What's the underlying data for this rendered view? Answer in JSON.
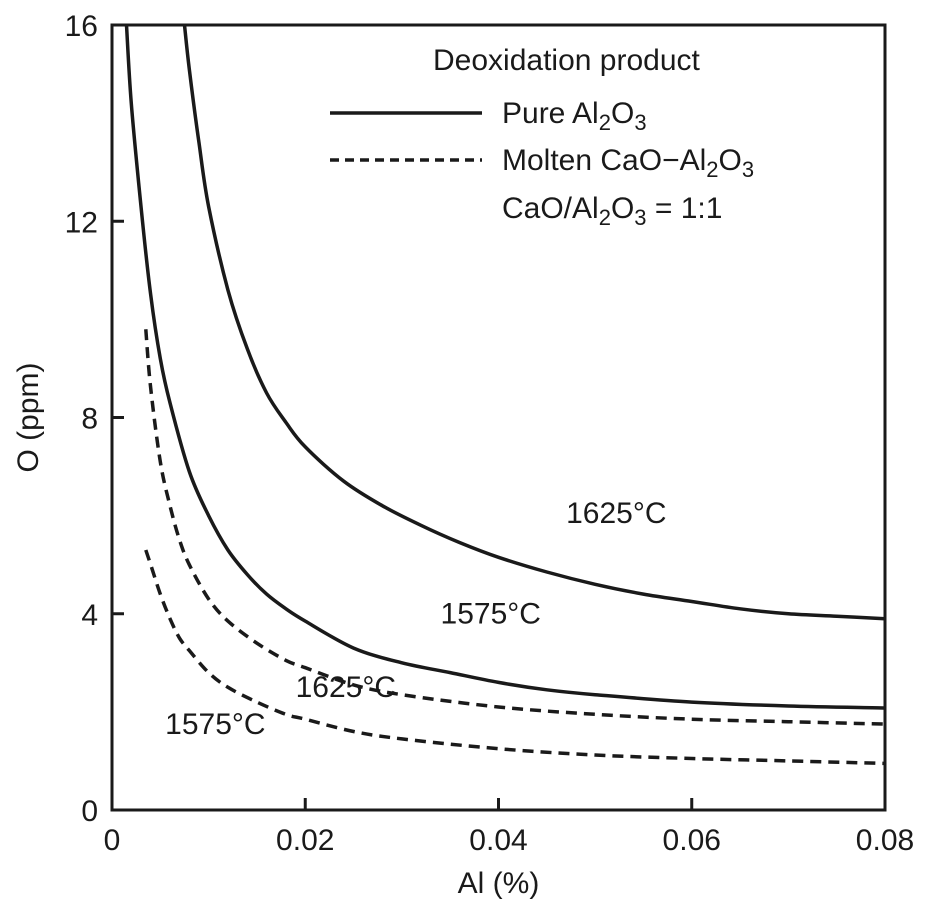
{
  "chart_data": {
    "type": "line",
    "title": "",
    "xlabel": "Al (%)",
    "ylabel": "O (ppm)",
    "xlim": [
      0,
      0.08
    ],
    "ylim": [
      0,
      16
    ],
    "x_ticks": [
      "0",
      "0.02",
      "0.04",
      "0.06",
      "0.08"
    ],
    "y_ticks": [
      "0",
      "4",
      "8",
      "12",
      "16"
    ],
    "grid": false,
    "legend": {
      "title": "Deoxidation product",
      "position": "top-right",
      "entries": [
        {
          "style": "solid",
          "label": "Pure Al",
          "sub1": "2",
          "mid": "O",
          "sub2": "3"
        },
        {
          "style": "dashed",
          "label": "Molten CaO−Al",
          "sub1": "2",
          "mid": "O",
          "sub2": "3"
        }
      ],
      "note": {
        "pre": "CaO/Al",
        "sub1": "2",
        "mid": "O",
        "sub2": "3",
        "post": " = 1:1"
      }
    },
    "series": [
      {
        "style": "solid",
        "label": "1625°C",
        "x": [
          0.0075,
          0.008,
          0.009,
          0.01,
          0.012,
          0.014,
          0.016,
          0.018,
          0.02,
          0.024,
          0.028,
          0.032,
          0.036,
          0.04,
          0.045,
          0.05,
          0.055,
          0.06,
          0.065,
          0.07,
          0.075,
          0.08
        ],
        "y": [
          16.0,
          15.1,
          13.6,
          12.3,
          10.6,
          9.4,
          8.5,
          7.9,
          7.4,
          6.7,
          6.2,
          5.8,
          5.45,
          5.15,
          4.85,
          4.6,
          4.4,
          4.25,
          4.1,
          4.0,
          3.95,
          3.9
        ]
      },
      {
        "style": "solid",
        "label": "1575°C",
        "x": [
          0.0015,
          0.002,
          0.003,
          0.004,
          0.005,
          0.006,
          0.008,
          0.01,
          0.012,
          0.014,
          0.016,
          0.018,
          0.02,
          0.025,
          0.03,
          0.035,
          0.04,
          0.045,
          0.05,
          0.06,
          0.07,
          0.08
        ],
        "y": [
          16.0,
          14.4,
          12.3,
          10.5,
          9.2,
          8.3,
          6.9,
          6.0,
          5.3,
          4.8,
          4.4,
          4.1,
          3.85,
          3.3,
          3.0,
          2.8,
          2.6,
          2.45,
          2.35,
          2.2,
          2.12,
          2.08
        ]
      },
      {
        "style": "dashed",
        "label": "1625°C",
        "x": [
          0.0035,
          0.004,
          0.005,
          0.006,
          0.007,
          0.008,
          0.01,
          0.012,
          0.015,
          0.018,
          0.02,
          0.025,
          0.03,
          0.04,
          0.05,
          0.06,
          0.07,
          0.08
        ],
        "y": [
          9.8,
          8.6,
          7.1,
          6.2,
          5.5,
          5.0,
          4.3,
          3.85,
          3.4,
          3.05,
          2.9,
          2.55,
          2.35,
          2.1,
          1.95,
          1.85,
          1.8,
          1.75
        ]
      },
      {
        "style": "dashed",
        "label": "1575°C",
        "x": [
          0.0035,
          0.004,
          0.005,
          0.006,
          0.007,
          0.008,
          0.01,
          0.012,
          0.015,
          0.018,
          0.02,
          0.025,
          0.03,
          0.04,
          0.05,
          0.06,
          0.07,
          0.08
        ],
        "y": [
          5.3,
          5.0,
          4.4,
          3.9,
          3.5,
          3.25,
          2.8,
          2.5,
          2.2,
          1.95,
          1.85,
          1.6,
          1.45,
          1.25,
          1.12,
          1.05,
          1.0,
          0.95
        ]
      }
    ],
    "annotations": [
      {
        "text": "1625°C",
        "series_index": 0,
        "x": 0.047,
        "y": 5.85
      },
      {
        "text": "1575°C",
        "series_index": 1,
        "x": 0.034,
        "y": 3.8
      },
      {
        "text": "1625°C",
        "series_index": 2,
        "x": 0.019,
        "y": 2.3
      },
      {
        "text": "1575°C",
        "series_index": 3,
        "x": 0.0055,
        "y": 1.55
      }
    ]
  }
}
